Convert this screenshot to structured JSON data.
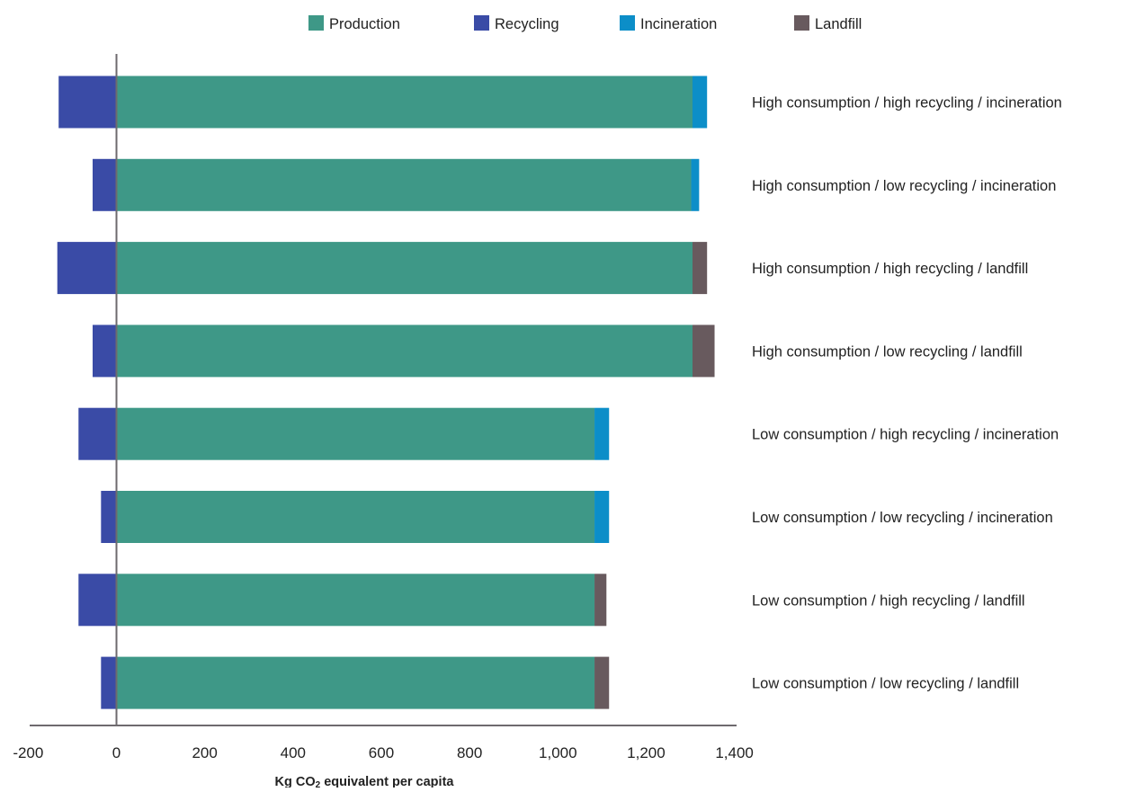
{
  "chart_data": {
    "type": "bar",
    "orientation": "horizontal",
    "stacked": true,
    "title": "",
    "xlabel": "Kg CO2 equivalent per capita",
    "xlabel_parts": {
      "pre": "Kg CO",
      "sub": "2",
      "post": " equivalent per capita"
    },
    "ylabel": "",
    "xlim": [
      -200,
      1400
    ],
    "xticks": [
      -200,
      0,
      200,
      400,
      600,
      800,
      1000,
      1200,
      1400
    ],
    "xtick_labels": [
      "-200",
      "0",
      "200",
      "400",
      "600",
      "800",
      "1,000",
      "1,200",
      "1,400"
    ],
    "grid": false,
    "legend_position": "top",
    "categories": [
      "High consumption / high recycling / incineration",
      "High consumption / low recycling / incineration",
      "High consumption / high recycling / landfill",
      "High consumption / low recycling / landfill",
      "Low consumption / high recycling / incineration",
      "Low consumption / low recycling / incineration",
      "Low consumption / high recycling / landfill",
      "Low consumption / low recycling / landfill"
    ],
    "series": [
      {
        "name": "Production",
        "color": "#3e9887",
        "values": [
          1305,
          1302,
          1305,
          1305,
          1083,
          1083,
          1083,
          1083
        ]
      },
      {
        "name": "Recycling",
        "color": "#3a4ba6",
        "values": [
          -131,
          -54,
          -134,
          -54,
          -86,
          -35,
          -86,
          -35
        ]
      },
      {
        "name": "Incineration",
        "color": "#0c8ec8",
        "values": [
          33,
          18,
          0,
          0,
          33,
          33,
          0,
          0
        ]
      },
      {
        "name": "Landfill",
        "color": "#685a5e",
        "values": [
          0,
          0,
          33,
          50,
          0,
          0,
          27,
          33
        ]
      }
    ]
  }
}
